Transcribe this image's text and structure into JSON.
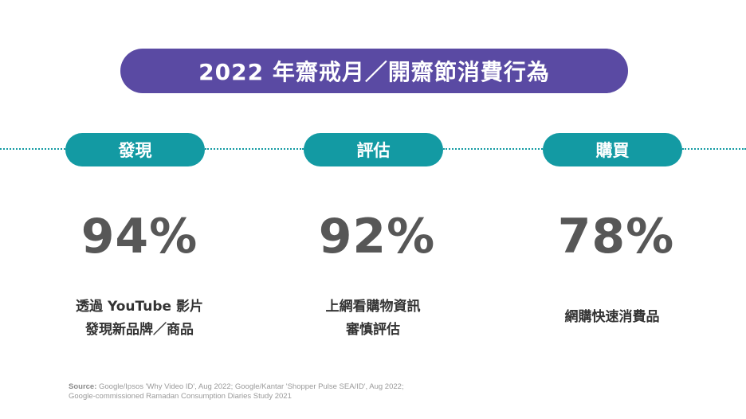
{
  "title": "2022 年齋戒月／開齋節消費行為",
  "stages": [
    {
      "label": "發現",
      "stat": "94%",
      "desc": [
        "透過 YouTube 影片",
        "發現新品牌／商品"
      ]
    },
    {
      "label": "評估",
      "stat": "92%",
      "desc": [
        "上網看購物資訊",
        "審慎評估"
      ]
    },
    {
      "label": "購買",
      "stat": "78%",
      "desc": [
        "網購快速消費品"
      ]
    }
  ],
  "source": {
    "prefix": "Source:",
    "line1": " Google/Ipsos 'Why Video ID', Aug 2022; Google/Kantar 'Shopper Pulse SEA/ID', Aug 2022;",
    "line2": "Google-commissioned Ramadan Consumption Diaries Study 2021"
  },
  "colors": {
    "title_bg": "#5a4aa3",
    "stage_bg": "#139aa3",
    "stat_text": "#575757"
  }
}
